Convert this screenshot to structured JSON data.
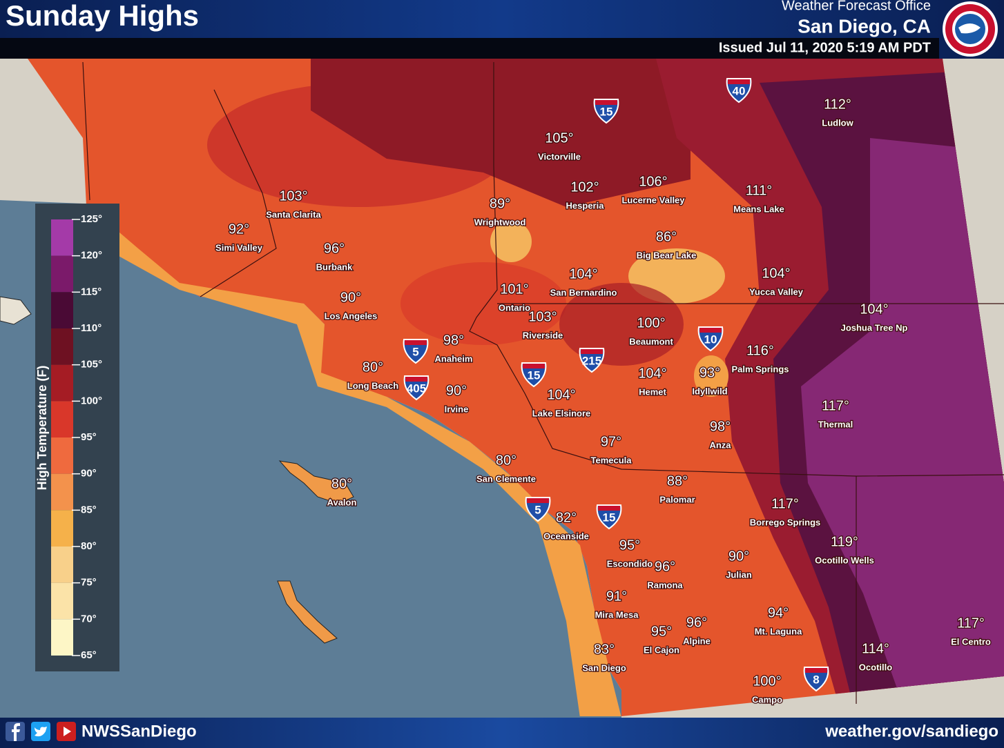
{
  "header": {
    "title": "Sunday Highs",
    "office": "Weather Forecast Office",
    "location": "San Diego, CA",
    "issued": "Issued Jul 11, 2020 5:19 AM PDT"
  },
  "legend": {
    "title": "High Temperature (F)",
    "ticks": [
      "125°",
      "120°",
      "115°",
      "110°",
      "105°",
      "100°",
      "95°",
      "90°",
      "85°",
      "80°",
      "75°",
      "70°",
      "65°"
    ]
  },
  "cities": [
    {
      "temp": "105°",
      "name": "Victorville"
    },
    {
      "temp": "102°",
      "name": "Hesperia"
    },
    {
      "temp": "106°",
      "name": "Lucerne Valley"
    },
    {
      "temp": "111°",
      "name": "Means Lake"
    },
    {
      "temp": "112°",
      "name": "Ludlow"
    },
    {
      "temp": "103°",
      "name": "Santa Clarita"
    },
    {
      "temp": "92°",
      "name": "Simi Valley"
    },
    {
      "temp": "96°",
      "name": "Burbank"
    },
    {
      "temp": "89°",
      "name": "Wrightwood"
    },
    {
      "temp": "86°",
      "name": "Big Bear Lake"
    },
    {
      "temp": "104°",
      "name": "San Bernardino"
    },
    {
      "temp": "104°",
      "name": "Yucca Valley"
    },
    {
      "temp": "90°",
      "name": "Los Angeles"
    },
    {
      "temp": "101°",
      "name": "Ontario"
    },
    {
      "temp": "103°",
      "name": "Riverside"
    },
    {
      "temp": "100°",
      "name": "Beaumont"
    },
    {
      "temp": "104°",
      "name": "Joshua Tree Np"
    },
    {
      "temp": "98°",
      "name": "Anaheim"
    },
    {
      "temp": "116°",
      "name": "Palm Springs"
    },
    {
      "temp": "80°",
      "name": "Long Beach"
    },
    {
      "temp": "104°",
      "name": "Hemet"
    },
    {
      "temp": "93°",
      "name": "Idyllwild"
    },
    {
      "temp": "90°",
      "name": "Irvine"
    },
    {
      "temp": "104°",
      "name": "Lake Elsinore"
    },
    {
      "temp": "117°",
      "name": "Thermal"
    },
    {
      "temp": "98°",
      "name": "Anza"
    },
    {
      "temp": "97°",
      "name": "Temecula"
    },
    {
      "temp": "80°",
      "name": "San Clemente"
    },
    {
      "temp": "88°",
      "name": "Palomar"
    },
    {
      "temp": "80°",
      "name": "Avalon"
    },
    {
      "temp": "117°",
      "name": "Borrego Springs"
    },
    {
      "temp": "82°",
      "name": "Oceanside"
    },
    {
      "temp": "119°",
      "name": "Ocotillo Wells"
    },
    {
      "temp": "95°",
      "name": "Escondido"
    },
    {
      "temp": "90°",
      "name": "Julian"
    },
    {
      "temp": "96°",
      "name": "Ramona"
    },
    {
      "temp": "91°",
      "name": "Mira Mesa"
    },
    {
      "temp": "94°",
      "name": "Mt. Laguna"
    },
    {
      "temp": "96°",
      "name": "Alpine"
    },
    {
      "temp": "95°",
      "name": "El Cajon"
    },
    {
      "temp": "117°",
      "name": "El Centro"
    },
    {
      "temp": "83°",
      "name": "San Diego"
    },
    {
      "temp": "114°",
      "name": "Ocotillo"
    },
    {
      "temp": "100°",
      "name": "Campo"
    }
  ],
  "highways": [
    "15",
    "40",
    "5",
    "405",
    "15",
    "215",
    "10",
    "5",
    "15",
    "8"
  ],
  "footer": {
    "handle": "NWSSanDiego",
    "url": "weather.gov/sandiego"
  }
}
